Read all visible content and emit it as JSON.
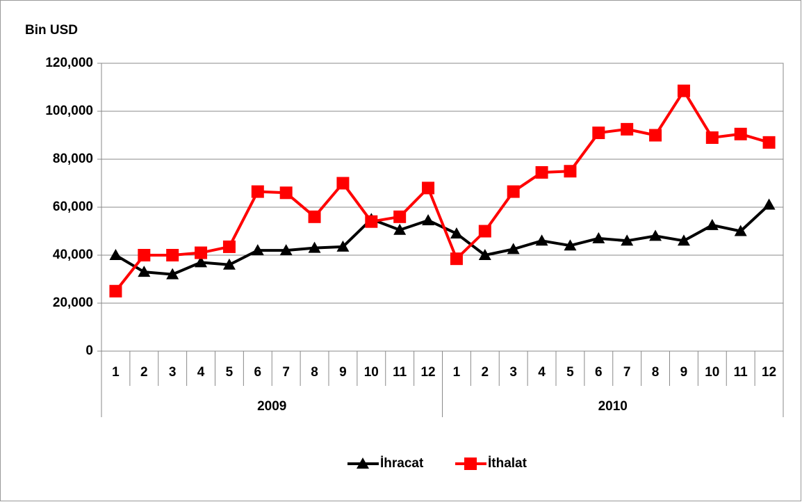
{
  "chart_data": {
    "type": "line",
    "y_label": "Bin USD",
    "categories": [
      "1",
      "2",
      "3",
      "4",
      "5",
      "6",
      "7",
      "8",
      "9",
      "10",
      "11",
      "12",
      "1",
      "2",
      "3",
      "4",
      "5",
      "6",
      "7",
      "8",
      "9",
      "10",
      "11",
      "12"
    ],
    "category_groups": [
      "2009",
      "2010"
    ],
    "series": [
      {
        "name": "İhracat",
        "color": "#000000",
        "marker": "triangle",
        "values": [
          40000,
          33000,
          32000,
          37000,
          36000,
          42000,
          42000,
          43000,
          43500,
          55000,
          50500,
          54500,
          49000,
          40000,
          42500,
          46000,
          44000,
          47000,
          46000,
          48000,
          46000,
          52500,
          50000,
          61000
        ]
      },
      {
        "name": "İthalat",
        "color": "#ff0000",
        "marker": "square",
        "values": [
          25000,
          40000,
          40000,
          41000,
          43500,
          66500,
          66000,
          56000,
          70000,
          54000,
          56000,
          68000,
          38500,
          50000,
          66500,
          74500,
          75000,
          91000,
          92500,
          90000,
          108500,
          89000,
          90500,
          87000
        ]
      }
    ],
    "ylim": [
      0,
      120000
    ],
    "yticks": [
      0,
      {
        "value": 20000,
        "label": "20,000"
      },
      {
        "value": 40000,
        "label": "40,000"
      },
      {
        "value": 60000,
        "label": "60,000"
      },
      {
        "value": 80000,
        "label": "80,000"
      },
      {
        "value": 100000,
        "label": "100,000"
      },
      {
        "value": 120000,
        "label": "120,000"
      }
    ],
    "grid": true,
    "legend": "bottom"
  }
}
